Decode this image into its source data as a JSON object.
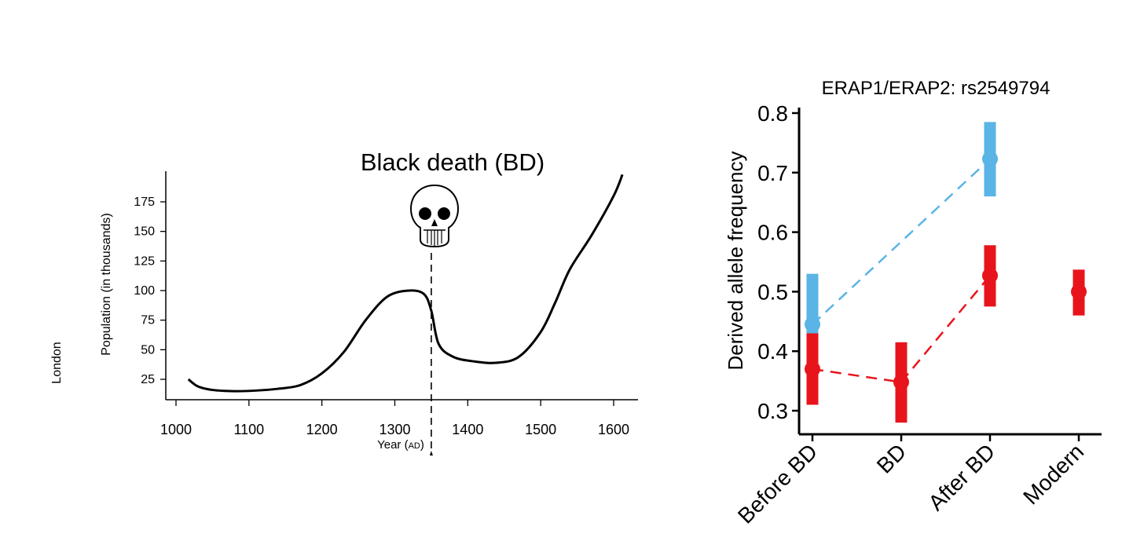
{
  "chart_data": [
    {
      "type": "line",
      "title": "Black death (BD)",
      "xlabel": "Year (AD)",
      "ylabel": "Population (in thousands)",
      "side_label": "London",
      "xlim": [
        1000,
        1630
      ],
      "ylim": [
        13,
        192
      ],
      "x_ticks": [
        1000,
        1100,
        1200,
        1300,
        1400,
        1500,
        1600
      ],
      "y_ticks": [
        25,
        50,
        75,
        100,
        125,
        150,
        175
      ],
      "event_marker": {
        "x": 1350,
        "icon": "skull-icon"
      },
      "series": [
        {
          "x": [
            1017,
            1030,
            1050,
            1080,
            1110,
            1140,
            1170,
            1200,
            1230,
            1260,
            1290,
            1320,
            1340,
            1350,
            1360,
            1380,
            1410,
            1440,
            1470,
            1500,
            1520,
            1540,
            1570,
            1600,
            1612
          ],
          "y": [
            25,
            19,
            16,
            15,
            15.5,
            17,
            20,
            30,
            48,
            75,
            95,
            100,
            97,
            83,
            55,
            44,
            40,
            39,
            44,
            65,
            90,
            118,
            147,
            180,
            198
          ]
        }
      ]
    },
    {
      "type": "scatter",
      "title": "ERAP1/ERAP2: rs2549794",
      "xlabel": "",
      "ylabel": "Derived allele frequency",
      "categories": [
        "Before BD",
        "BD",
        "After BD",
        "Modern"
      ],
      "ylim": [
        0.27,
        0.82
      ],
      "y_ticks": [
        "0.3",
        "0.4",
        "0.5",
        "0.6",
        "0.7",
        "0.8"
      ],
      "series": [
        {
          "color": "#5ab4e5",
          "points": [
            {
              "category": "Before BD",
              "value": 0.445,
              "low": 0.36,
              "high": 0.53
            },
            {
              "category": "After BD",
              "value": 0.723,
              "low": 0.66,
              "high": 0.785
            }
          ]
        },
        {
          "color": "#e8141c",
          "points": [
            {
              "category": "Before BD",
              "value": 0.37,
              "low": 0.31,
              "high": 0.43
            },
            {
              "category": "BD",
              "value": 0.348,
              "low": 0.28,
              "high": 0.415
            },
            {
              "category": "After BD",
              "value": 0.527,
              "low": 0.475,
              "high": 0.578
            },
            {
              "category": "Modern",
              "value": 0.5,
              "low": 0.46,
              "high": 0.537
            }
          ]
        }
      ]
    }
  ]
}
